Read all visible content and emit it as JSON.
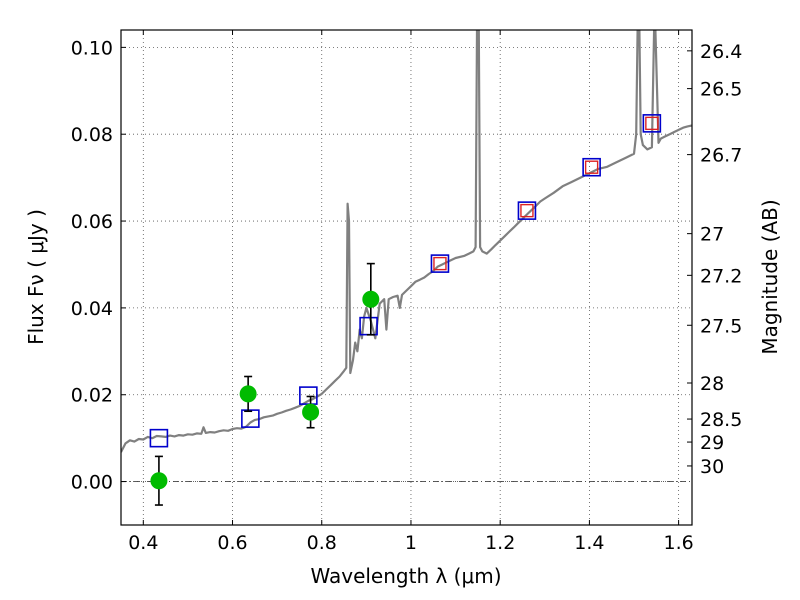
{
  "chart_data": {
    "type": "scatter",
    "xlabel": "Wavelength  λ (μm)",
    "ylabel": "Flux  Fν  ( μJy )",
    "y2label": "Magnitude (AB)",
    "xlim": [
      0.35,
      1.63
    ],
    "ylim": [
      -0.01,
      0.104
    ],
    "grid": true,
    "x_ticks": [
      {
        "value": 0.4,
        "label": "0.4"
      },
      {
        "value": 0.6,
        "label": "0.6"
      },
      {
        "value": 0.8,
        "label": "0.8"
      },
      {
        "value": 1.0,
        "label": "1"
      },
      {
        "value": 1.2,
        "label": "1.2"
      },
      {
        "value": 1.4,
        "label": "1.4"
      },
      {
        "value": 1.6,
        "label": "1.6"
      }
    ],
    "y_ticks": [
      {
        "value": 0.0,
        "label": "0.00"
      },
      {
        "value": 0.02,
        "label": "0.02"
      },
      {
        "value": 0.04,
        "label": "0.04"
      },
      {
        "value": 0.06,
        "label": "0.06"
      },
      {
        "value": 0.08,
        "label": "0.08"
      },
      {
        "value": 0.1,
        "label": "0.10"
      }
    ],
    "mag_ticks": [
      {
        "flux": 0.0992,
        "label": "26.4"
      },
      {
        "flux": 0.0905,
        "label": "26.5"
      },
      {
        "flux": 0.0753,
        "label": "26.7"
      },
      {
        "flux": 0.0571,
        "label": "27"
      },
      {
        "flux": 0.0475,
        "label": "27.2"
      },
      {
        "flux": 0.036,
        "label": "27.5"
      },
      {
        "flux": 0.0227,
        "label": "28"
      },
      {
        "flux": 0.0144,
        "label": "28.5"
      },
      {
        "flux": 0.0091,
        "label": "29"
      },
      {
        "flux": 0.0036,
        "label": "30"
      }
    ],
    "colors": {
      "model": "#808080",
      "observed": "#00bb00",
      "model_photometry_blue": "#0000cc",
      "model_photometry_red": "#dd2222",
      "error_bar": "#000000",
      "grid": "#555555"
    },
    "model_spectrum": [
      [
        0.35,
        0.0068
      ],
      [
        0.36,
        0.0088
      ],
      [
        0.37,
        0.0095
      ],
      [
        0.38,
        0.0092
      ],
      [
        0.39,
        0.0098
      ],
      [
        0.4,
        0.0097
      ],
      [
        0.41,
        0.0103
      ],
      [
        0.42,
        0.01
      ],
      [
        0.43,
        0.0105
      ],
      [
        0.44,
        0.0104
      ],
      [
        0.45,
        0.0103
      ],
      [
        0.46,
        0.0106
      ],
      [
        0.47,
        0.0104
      ],
      [
        0.48,
        0.0107
      ],
      [
        0.49,
        0.0106
      ],
      [
        0.5,
        0.0109
      ],
      [
        0.51,
        0.0108
      ],
      [
        0.52,
        0.0111
      ],
      [
        0.53,
        0.011
      ],
      [
        0.535,
        0.0125
      ],
      [
        0.54,
        0.0112
      ],
      [
        0.55,
        0.0114
      ],
      [
        0.56,
        0.0113
      ],
      [
        0.57,
        0.0116
      ],
      [
        0.58,
        0.0118
      ],
      [
        0.59,
        0.0117
      ],
      [
        0.6,
        0.0121
      ],
      [
        0.61,
        0.0123
      ],
      [
        0.62,
        0.0122
      ],
      [
        0.63,
        0.0126
      ],
      [
        0.64,
        0.0136
      ],
      [
        0.65,
        0.0142
      ],
      [
        0.66,
        0.0144
      ],
      [
        0.67,
        0.0148
      ],
      [
        0.68,
        0.015
      ],
      [
        0.69,
        0.0152
      ],
      [
        0.7,
        0.0156
      ],
      [
        0.71,
        0.0159
      ],
      [
        0.72,
        0.0163
      ],
      [
        0.73,
        0.0166
      ],
      [
        0.74,
        0.017
      ],
      [
        0.75,
        0.0174
      ],
      [
        0.76,
        0.018
      ],
      [
        0.77,
        0.0186
      ],
      [
        0.78,
        0.019
      ],
      [
        0.79,
        0.0196
      ],
      [
        0.8,
        0.0202
      ],
      [
        0.81,
        0.0212
      ],
      [
        0.82,
        0.0222
      ],
      [
        0.83,
        0.0232
      ],
      [
        0.84,
        0.0242
      ],
      [
        0.85,
        0.0255
      ],
      [
        0.855,
        0.0262
      ],
      [
        0.858,
        0.064
      ],
      [
        0.861,
        0.06
      ],
      [
        0.864,
        0.025
      ],
      [
        0.87,
        0.028
      ],
      [
        0.875,
        0.032
      ],
      [
        0.88,
        0.03
      ],
      [
        0.885,
        0.035
      ],
      [
        0.89,
        0.033
      ],
      [
        0.895,
        0.038
      ],
      [
        0.9,
        0.04
      ],
      [
        0.91,
        0.037
      ],
      [
        0.92,
        0.033
      ],
      [
        0.93,
        0.041
      ],
      [
        0.94,
        0.042
      ],
      [
        0.945,
        0.035
      ],
      [
        0.95,
        0.042
      ],
      [
        0.96,
        0.0425
      ],
      [
        0.97,
        0.0428
      ],
      [
        0.975,
        0.04
      ],
      [
        0.98,
        0.043
      ],
      [
        0.99,
        0.044
      ],
      [
        1.0,
        0.045
      ],
      [
        1.01,
        0.046
      ],
      [
        1.02,
        0.0465
      ],
      [
        1.03,
        0.047
      ],
      [
        1.04,
        0.0478
      ],
      [
        1.05,
        0.0485
      ],
      [
        1.06,
        0.0495
      ],
      [
        1.07,
        0.05
      ],
      [
        1.08,
        0.0505
      ],
      [
        1.09,
        0.051
      ],
      [
        1.1,
        0.0515
      ],
      [
        1.12,
        0.052
      ],
      [
        1.13,
        0.0525
      ],
      [
        1.14,
        0.053
      ],
      [
        1.145,
        0.054
      ],
      [
        1.148,
        0.104
      ],
      [
        1.152,
        0.104
      ],
      [
        1.155,
        0.054
      ],
      [
        1.16,
        0.053
      ],
      [
        1.17,
        0.0525
      ],
      [
        1.18,
        0.0535
      ],
      [
        1.19,
        0.0545
      ],
      [
        1.2,
        0.0555
      ],
      [
        1.21,
        0.0565
      ],
      [
        1.22,
        0.0575
      ],
      [
        1.23,
        0.0585
      ],
      [
        1.24,
        0.0595
      ],
      [
        1.25,
        0.0605
      ],
      [
        1.26,
        0.0615
      ],
      [
        1.27,
        0.0625
      ],
      [
        1.28,
        0.0635
      ],
      [
        1.29,
        0.0645
      ],
      [
        1.3,
        0.0652
      ],
      [
        1.32,
        0.0665
      ],
      [
        1.34,
        0.068
      ],
      [
        1.36,
        0.069
      ],
      [
        1.38,
        0.07
      ],
      [
        1.4,
        0.071
      ],
      [
        1.42,
        0.072
      ],
      [
        1.44,
        0.0725
      ],
      [
        1.46,
        0.0735
      ],
      [
        1.48,
        0.0745
      ],
      [
        1.5,
        0.0755
      ],
      [
        1.505,
        0.08
      ],
      [
        1.508,
        0.104
      ],
      [
        1.512,
        0.104
      ],
      [
        1.515,
        0.08
      ],
      [
        1.52,
        0.0775
      ],
      [
        1.53,
        0.0765
      ],
      [
        1.54,
        0.077
      ],
      [
        1.545,
        0.104
      ],
      [
        1.548,
        0.104
      ],
      [
        1.555,
        0.078
      ],
      [
        1.56,
        0.079
      ],
      [
        1.57,
        0.0795
      ],
      [
        1.58,
        0.08
      ],
      [
        1.59,
        0.0805
      ],
      [
        1.6,
        0.081
      ],
      [
        1.61,
        0.0815
      ],
      [
        1.62,
        0.0818
      ],
      [
        1.63,
        0.082
      ]
    ],
    "observed_points": [
      {
        "x": 0.435,
        "y": 0.0002,
        "err": 0.0056
      },
      {
        "x": 0.635,
        "y": 0.0202,
        "err": 0.004
      },
      {
        "x": 0.775,
        "y": 0.016,
        "err": 0.0036
      },
      {
        "x": 0.91,
        "y": 0.042,
        "err": 0.0082
      }
    ],
    "model_photometry_blue": [
      {
        "x": 0.435,
        "y": 0.01
      },
      {
        "x": 0.64,
        "y": 0.0145
      },
      {
        "x": 0.77,
        "y": 0.0198
      },
      {
        "x": 0.905,
        "y": 0.0358
      },
      {
        "x": 1.065,
        "y": 0.0502
      },
      {
        "x": 1.26,
        "y": 0.0624
      },
      {
        "x": 1.405,
        "y": 0.0724
      },
      {
        "x": 1.54,
        "y": 0.0825
      }
    ],
    "model_photometry_red": [
      {
        "x": 1.065,
        "y": 0.0502
      },
      {
        "x": 1.26,
        "y": 0.0624
      },
      {
        "x": 1.405,
        "y": 0.0724
      },
      {
        "x": 1.54,
        "y": 0.0825
      }
    ]
  }
}
